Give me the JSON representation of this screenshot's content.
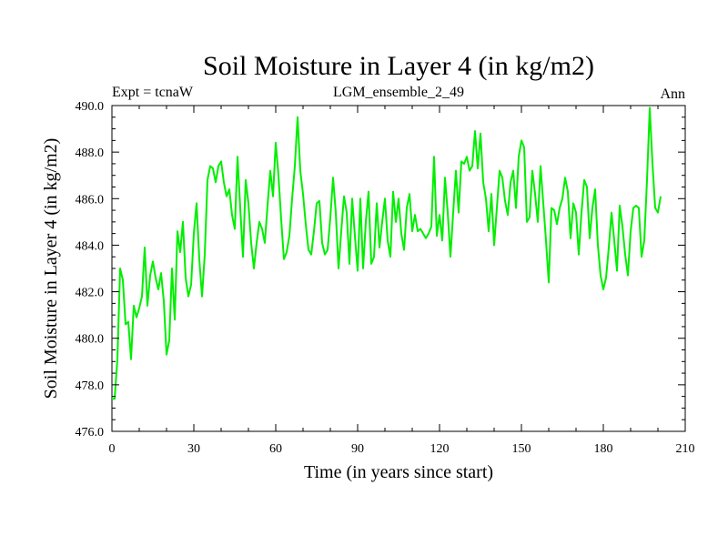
{
  "chart_data": {
    "type": "line",
    "title": "Soil Moisture in Layer 4 (in kg/m2)",
    "subtitle_left": "Expt = tcnaW",
    "subtitle_center": "LGM_ensemble_2_49",
    "subtitle_right": "Ann",
    "xlabel": "Time (in years since start)",
    "ylabel": "Soil Moisture in Layer 4 (in kg/m2)",
    "xlim": [
      0,
      210
    ],
    "ylim": [
      476.0,
      490.0
    ],
    "x_ticks": [
      "0",
      "30",
      "60",
      "90",
      "120",
      "150",
      "180",
      "210"
    ],
    "y_ticks": [
      "476.0",
      "478.0",
      "480.0",
      "482.0",
      "484.0",
      "486.0",
      "488.0",
      "490.0"
    ],
    "grid": false,
    "series": [
      {
        "name": "Soil Moisture Layer 4",
        "color": "#00ee00",
        "x_start": 0,
        "x_step": 1,
        "values": [
          477.4,
          477.4,
          479.1,
          483.0,
          482.5,
          480.6,
          480.7,
          479.1,
          481.4,
          480.9,
          481.3,
          481.8,
          483.9,
          481.4,
          482.7,
          483.3,
          482.6,
          482.1,
          482.8,
          481.6,
          479.3,
          479.9,
          483.0,
          480.8,
          484.6,
          483.7,
          485.0,
          482.6,
          481.8,
          482.3,
          484.5,
          485.8,
          483.4,
          481.8,
          483.6,
          486.8,
          487.4,
          487.3,
          486.7,
          487.4,
          487.6,
          486.7,
          486.1,
          486.4,
          485.3,
          484.7,
          487.8,
          485.6,
          483.5,
          486.8,
          485.8,
          484.1,
          483.0,
          484.1,
          485.0,
          484.7,
          484.1,
          485.7,
          487.2,
          486.1,
          488.4,
          487.0,
          485.1,
          483.4,
          483.7,
          484.4,
          486.0,
          487.4,
          489.5,
          487.2,
          486.2,
          484.9,
          483.8,
          483.6,
          484.6,
          485.8,
          485.9,
          484.1,
          483.6,
          483.8,
          485.2,
          486.9,
          485.4,
          483.0,
          484.6,
          486.1,
          485.4,
          483.2,
          486.0,
          484.4,
          482.9,
          486.0,
          483.0,
          485.0,
          486.3,
          483.2,
          483.5,
          485.8,
          483.9,
          485.0,
          486.0,
          484.2,
          483.5,
          486.3,
          485.0,
          486.0,
          484.5,
          483.8,
          485.6,
          486.2,
          484.6,
          485.3,
          484.6,
          484.7,
          484.5,
          484.3,
          484.5,
          484.8,
          487.8,
          484.4,
          485.3,
          484.2,
          486.9,
          485.4,
          483.5,
          485.4,
          487.2,
          485.4,
          487.6,
          487.5,
          487.8,
          487.2,
          487.4,
          488.9,
          487.3,
          488.8,
          486.7,
          486.0,
          484.6,
          486.2,
          484.0,
          485.6,
          487.2,
          486.9,
          485.9,
          485.3,
          486.7,
          487.2,
          485.6,
          487.8,
          488.5,
          488.2,
          485.0,
          485.2,
          487.2,
          486.2,
          485.0,
          487.4,
          485.8,
          484.2,
          482.4,
          485.6,
          485.5,
          484.9,
          485.6,
          486.0,
          486.9,
          486.3,
          484.3,
          485.8,
          485.4,
          483.6,
          485.4,
          486.8,
          486.5,
          484.3,
          485.6,
          486.4,
          484.0,
          482.7,
          482.1,
          482.6,
          483.9,
          485.4,
          484.2,
          482.9,
          485.7,
          484.8,
          483.6,
          482.7,
          484.6,
          485.6,
          485.7,
          485.6,
          483.5,
          484.2,
          486.8,
          489.9,
          487.5,
          485.6,
          485.4,
          486.1
        ]
      }
    ]
  }
}
